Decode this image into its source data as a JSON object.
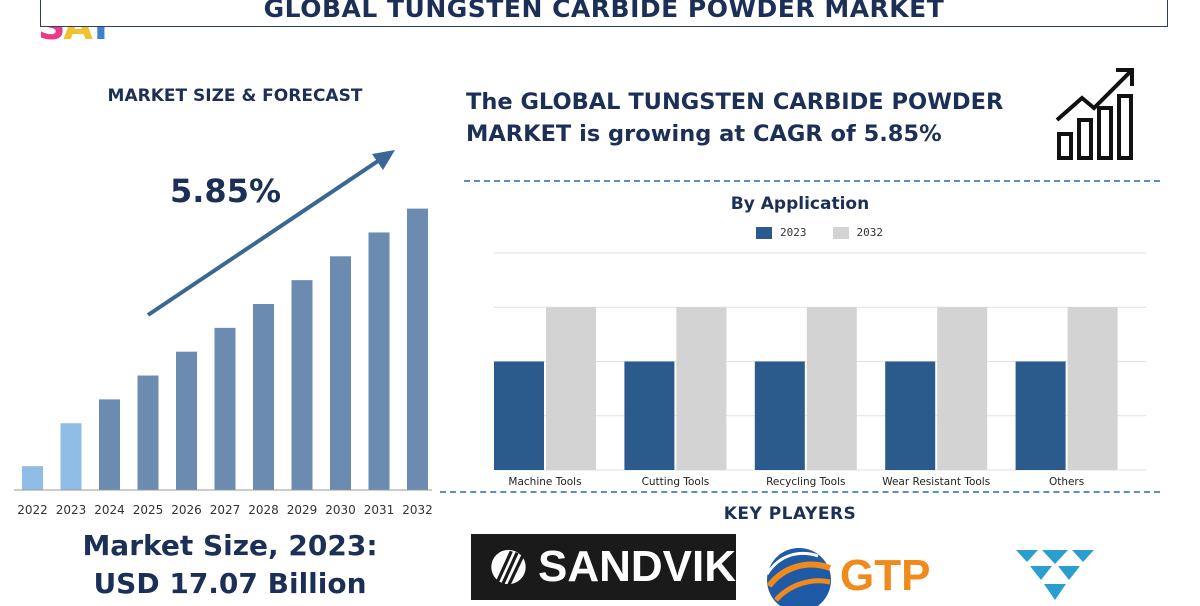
{
  "logo": {
    "s": "S",
    "a": "A",
    "y": "Y"
  },
  "title": "GLOBAL TUNGSTEN CARBIDE POWDER MARKET",
  "left_panel": {
    "heading": "MARKET SIZE & FORECAST",
    "cagr_label": "5.85%",
    "market_size_line1": "Market Size, 2023:",
    "market_size_line2": "USD 17.07 Billion"
  },
  "headline": {
    "line1": "The GLOBAL TUNGSTEN CARBIDE POWDER",
    "line2": "MARKET is growing at CAGR of 5.85%"
  },
  "key_players": {
    "heading": "KEY PLAYERS",
    "sandvik": "SANDVIK",
    "gtp": "GTP"
  },
  "icons": [
    "growth-chart-icon",
    "sandvik-emblem-icon",
    "gtp-globe-icon",
    "triangle-logo-icon"
  ],
  "colors": {
    "navy": "#1c2f57",
    "bar_steel": "#6b8bb0",
    "bar_light": "#90bde6",
    "bar_2023": "#2b5b8c",
    "bar_2032": "#d3d3d3",
    "gtp_orange": "#f08a1c"
  },
  "chart_data": [
    {
      "type": "bar",
      "title": "",
      "categories": [
        "2022",
        "2023",
        "2024",
        "2025",
        "2026",
        "2027",
        "2028",
        "2029",
        "2030",
        "2031",
        "2032"
      ],
      "values": [
        1.0,
        2.8,
        3.8,
        4.8,
        5.8,
        6.8,
        7.8,
        8.8,
        9.8,
        10.8,
        11.8
      ],
      "highlight": [
        "2022",
        "2023"
      ],
      "annotation": "5.85%",
      "trend_arrow": true,
      "ylim": [
        0,
        13
      ],
      "grid": false
    },
    {
      "type": "bar",
      "title": "By Application",
      "categories": [
        "Machine Tools",
        "Cutting Tools",
        "Recycling Tools",
        "Wear Resistant Tools",
        "Others"
      ],
      "series": [
        {
          "name": "2023",
          "values": [
            2,
            2,
            2,
            2,
            2
          ]
        },
        {
          "name": "2032",
          "values": [
            3,
            3,
            3,
            3,
            3
          ]
        }
      ],
      "ylim": [
        0,
        4
      ],
      "grid": true,
      "legend": "top"
    }
  ]
}
